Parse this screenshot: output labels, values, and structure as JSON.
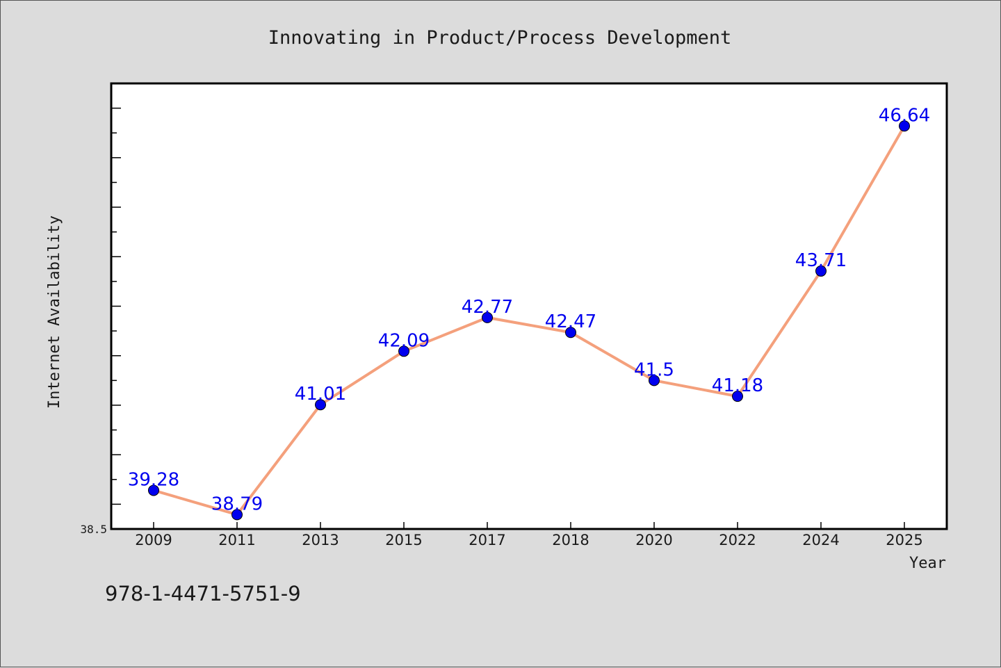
{
  "chart_data": {
    "type": "line",
    "title": "Innovating in Product/Process Development",
    "xlabel": "Year",
    "ylabel": "Internet Availability",
    "categories": [
      "2009",
      "2011",
      "2013",
      "2015",
      "2017",
      "2018",
      "2020",
      "2022",
      "2024",
      "2025"
    ],
    "series": [
      {
        "values": [
          39.28,
          38.79,
          41.01,
          42.09,
          42.77,
          42.47,
          41.5,
          41.18,
          43.71,
          46.64
        ],
        "value_labels": [
          "39.28",
          "38.79",
          "41.01",
          "42.09",
          "42.77",
          "42.47",
          "41.5",
          "41.18",
          "43.71",
          "46.64"
        ],
        "line_color": "#f4a07c",
        "marker_color": "#0000ee"
      }
    ],
    "ylim": [
      38.5,
      47.5
    ],
    "yticks_labeled": [
      "38.5"
    ],
    "grid": false,
    "legend": "none"
  },
  "footnote": "978-1-4471-5751-9"
}
